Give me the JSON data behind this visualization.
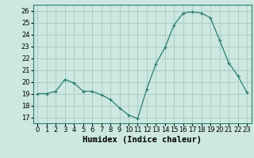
{
  "x": [
    0,
    1,
    2,
    3,
    4,
    5,
    6,
    7,
    8,
    9,
    10,
    11,
    12,
    13,
    14,
    15,
    16,
    17,
    18,
    19,
    20,
    21,
    22,
    23
  ],
  "y": [
    19.0,
    19.0,
    19.2,
    20.2,
    19.9,
    19.2,
    19.2,
    18.9,
    18.5,
    17.8,
    17.2,
    16.9,
    19.4,
    21.5,
    22.9,
    24.8,
    25.8,
    25.9,
    25.8,
    25.4,
    23.5,
    21.6,
    20.5,
    19.1
  ],
  "xlabel": "Humidex (Indice chaleur)",
  "line_color": "#2d7d6e",
  "marker": "+",
  "bg_color": "#cce8e0",
  "grid_color": "#aacec6",
  "ylim_min": 16.5,
  "ylim_max": 26.5,
  "xlim_min": -0.5,
  "xlim_max": 23.5,
  "yticks": [
    17,
    18,
    19,
    20,
    21,
    22,
    23,
    24,
    25,
    26
  ],
  "xticks": [
    0,
    1,
    2,
    3,
    4,
    5,
    6,
    7,
    8,
    9,
    10,
    11,
    12,
    13,
    14,
    15,
    16,
    17,
    18,
    19,
    20,
    21,
    22,
    23
  ],
  "tick_fontsize": 6,
  "label_fontsize": 7.5
}
